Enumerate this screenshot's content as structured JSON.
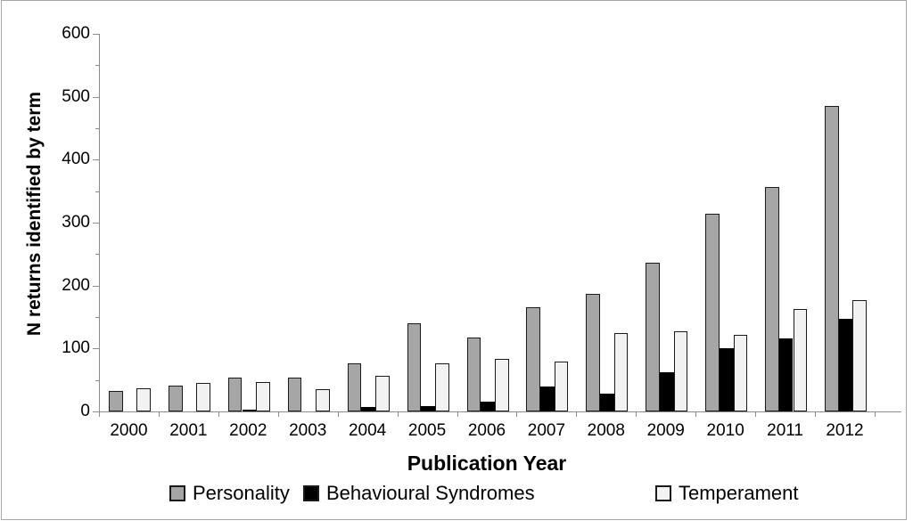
{
  "figure": {
    "background": "#ffffff",
    "border_color": "#a6a6a6",
    "axis_color": "#8c8c8c",
    "text_color": "#000000",
    "bar_outline_color": "#1a1a1a"
  },
  "chart_data": {
    "type": "bar",
    "title": "",
    "xlabel": "Publication Year",
    "ylabel": "N returns identified by term",
    "categories": [
      "2000",
      "2001",
      "2002",
      "2003",
      "2004",
      "2005",
      "2006",
      "2007",
      "2008",
      "2009",
      "2010",
      "2011",
      "2012"
    ],
    "series": [
      {
        "name": "Personality",
        "color": "#a6a6a6",
        "values": [
          33,
          41,
          54,
          54,
          77,
          140,
          118,
          166,
          187,
          237,
          314,
          357,
          486
        ]
      },
      {
        "name": "Behavioural Syndromes",
        "color": "#000000",
        "values": [
          0,
          0,
          3,
          0,
          7,
          8,
          15,
          39,
          28,
          62,
          101,
          116,
          147
        ]
      },
      {
        "name": "Temperament",
        "color": "#f2f2f2",
        "values": [
          37,
          45,
          46,
          35,
          56,
          77,
          84,
          79,
          124,
          128,
          121,
          163,
          177
        ]
      }
    ],
    "ylim": [
      0,
      600
    ],
    "yticks": [
      0,
      100,
      200,
      300,
      400,
      500,
      600
    ],
    "minor_ytick_interval": 50,
    "grid": false,
    "legend_position": "bottom"
  }
}
